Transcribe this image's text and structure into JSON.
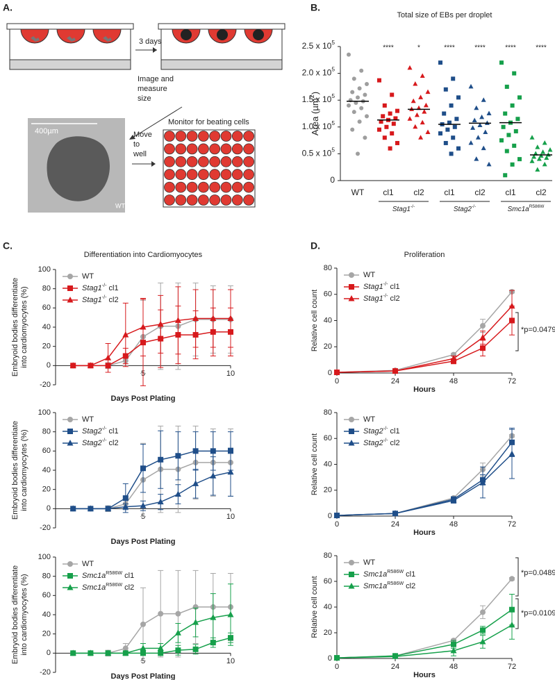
{
  "panel_a": {
    "label": "A.",
    "step1": "3 days",
    "step2": [
      "Image and",
      "measure",
      "size"
    ],
    "scale_bar": "400µm",
    "sample": "WT",
    "step3": [
      "Move",
      "to",
      "well"
    ],
    "plate_title": "Monitor for beating cells"
  },
  "chart_data": [
    {
      "type": "dotplot",
      "panel_label": "B.",
      "title": "Total size of EBs per droplet",
      "ylabel": "Area (µm^2)",
      "categories": [
        "WT",
        "cl1",
        "cl2",
        "cl1",
        "cl2",
        "cl1",
        "cl2"
      ],
      "group_labels": [
        "Stag1-/-",
        "Stag2-/-",
        "Smc1aR586W"
      ],
      "significance": [
        null,
        "****",
        "*",
        "****",
        "****",
        "****",
        "****"
      ],
      "colors": [
        "#9e9e9e",
        "#d7191c",
        "#d7191c",
        "#1f4e89",
        "#1f4e89",
        "#16a04b",
        "#16a04b"
      ],
      "markers": [
        "circle",
        "square",
        "triangle",
        "square",
        "triangle",
        "square",
        "triangle"
      ],
      "values": [
        [
          235000,
          205000,
          190000,
          180000,
          172000,
          165000,
          160000,
          155000,
          150000,
          148000,
          145000,
          140000,
          135000,
          128000,
          120000,
          110000,
          95000,
          80000,
          50000
        ],
        [
          187000,
          160000,
          140000,
          130000,
          125000,
          120000,
          116000,
          113000,
          110000,
          106000,
          100000,
          95000,
          88000,
          80000,
          70000,
          60000
        ],
        [
          210000,
          195000,
          180000,
          165000,
          155000,
          148000,
          140000,
          135000,
          133000,
          128000,
          122000,
          115000,
          108000,
          100000,
          90000,
          80000
        ],
        [
          220000,
          190000,
          170000,
          155000,
          140000,
          125000,
          115000,
          108000,
          105000,
          100000,
          95000,
          88000,
          80000,
          70000,
          60000,
          50000
        ],
        [
          175000,
          150000,
          135000,
          125000,
          118000,
          112000,
          107000,
          103000,
          98000,
          90000,
          80000,
          70000,
          60000,
          40000,
          30000
        ],
        [
          220000,
          200000,
          175000,
          155000,
          140000,
          125000,
          115000,
          108000,
          100000,
          92000,
          85000,
          75000,
          65000,
          55000,
          40000,
          30000,
          10000
        ],
        [
          80000,
          70000,
          62000,
          57000,
          53000,
          50000,
          48000,
          46000,
          44000,
          42000,
          40000,
          36000,
          30000,
          20000
        ]
      ],
      "medians": [
        148000,
        113000,
        133000,
        105000,
        107000,
        108000,
        48000
      ],
      "ylim": [
        0,
        250000
      ],
      "yticks": [
        0,
        {
          "value": 50000,
          "label": "0.5 x 10^5"
        },
        {
          "value": 100000,
          "label": "1.0 x 10^5"
        },
        {
          "value": 150000,
          "label": "1.5 x 10^5"
        },
        {
          "value": 200000,
          "label": "2.0 x 10^5"
        },
        {
          "value": 250000,
          "label": "2.5 x 10^5"
        }
      ]
    },
    {
      "type": "line",
      "panel_label": "C.",
      "title": "Differentiation into Cardiomyocytes",
      "xlabel": "Days Post Plating",
      "ylabel": [
        "Embryoid bodies differentiate",
        "into cardiomyocytes (%)"
      ],
      "x": [
        1,
        2,
        3,
        4,
        5,
        6,
        7,
        8,
        9,
        10
      ],
      "xlim": [
        0,
        10
      ],
      "xticks": [
        5,
        10
      ],
      "ylim": [
        -20,
        100
      ],
      "yticks": [
        -20,
        0,
        20,
        40,
        60,
        80,
        100
      ],
      "series": [
        {
          "name": "WT",
          "color": "#a6a6a6",
          "marker": "circle",
          "values": [
            0,
            0,
            0,
            5,
            30,
            41,
            41,
            48,
            48,
            48
          ],
          "errors": [
            0,
            0,
            3,
            5,
            38,
            45,
            45,
            38,
            35,
            35
          ]
        },
        {
          "name": "Stag1-/- cl1",
          "color": "#d7191c",
          "marker": "square",
          "values": [
            0,
            0,
            0,
            10,
            24,
            28,
            32,
            32,
            35,
            35
          ],
          "errors": [
            0,
            0,
            2,
            8,
            45,
            30,
            30,
            25,
            25,
            25
          ]
        },
        {
          "name": "Stag1-/- cl2",
          "color": "#d7191c",
          "marker": "triangle",
          "values": [
            0,
            0,
            8,
            32,
            40,
            43,
            47,
            49,
            49,
            49
          ],
          "errors": [
            0,
            0,
            15,
            33,
            30,
            30,
            35,
            30,
            30,
            30
          ]
        }
      ]
    },
    {
      "type": "line",
      "xlabel": "Days Post Plating",
      "ylabel": [
        "Embryoid bodies differentiate",
        "into cardiomyocytes (%)"
      ],
      "x": [
        1,
        2,
        3,
        4,
        5,
        6,
        7,
        8,
        9,
        10
      ],
      "xlim": [
        0,
        10
      ],
      "xticks": [
        5,
        10
      ],
      "ylim": [
        -20,
        100
      ],
      "yticks": [
        -20,
        0,
        20,
        40,
        60,
        80,
        100
      ],
      "series": [
        {
          "name": "WT",
          "color": "#a6a6a6",
          "marker": "circle",
          "values": [
            0,
            0,
            0,
            5,
            30,
            41,
            41,
            48,
            48,
            48
          ],
          "errors": [
            0,
            0,
            3,
            5,
            38,
            45,
            45,
            38,
            35,
            35
          ]
        },
        {
          "name": "Stag2-/- cl1",
          "color": "#1f4e89",
          "marker": "square",
          "values": [
            0,
            0,
            0,
            11,
            42,
            51,
            55,
            60,
            60,
            60
          ],
          "errors": [
            0,
            0,
            0,
            15,
            25,
            30,
            25,
            20,
            20,
            20
          ]
        },
        {
          "name": "Stag2-/- cl2",
          "color": "#1f4e89",
          "marker": "triangle",
          "values": [
            0,
            0,
            0,
            2,
            3,
            7,
            15,
            26,
            34,
            38
          ],
          "errors": [
            0,
            0,
            0,
            3,
            5,
            8,
            10,
            15,
            20,
            25
          ]
        }
      ]
    },
    {
      "type": "line",
      "xlabel": "Days Post Plating",
      "ylabel": [
        "Embryoid bodies differentiate",
        "into cardiomyocytes (%)"
      ],
      "x": [
        1,
        2,
        3,
        4,
        5,
        6,
        7,
        8,
        9,
        10
      ],
      "xlim": [
        0,
        10
      ],
      "xticks": [
        5,
        10
      ],
      "ylim": [
        -20,
        100
      ],
      "yticks": [
        -20,
        0,
        20,
        40,
        60,
        80,
        100
      ],
      "series": [
        {
          "name": "WT",
          "color": "#a6a6a6",
          "marker": "circle",
          "values": [
            0,
            0,
            0,
            5,
            30,
            41,
            41,
            48,
            48,
            48
          ],
          "errors": [
            0,
            0,
            3,
            5,
            38,
            45,
            45,
            38,
            35,
            35
          ]
        },
        {
          "name": "Smc1aR586W cl1",
          "color": "#16a04b",
          "marker": "square",
          "values": [
            0,
            0,
            0,
            0,
            0,
            0,
            3,
            4,
            11,
            16
          ],
          "errors": [
            0,
            0,
            0,
            0,
            0,
            0,
            5,
            5,
            5,
            5
          ]
        },
        {
          "name": "Smc1aR586W cl2",
          "color": "#16a04b",
          "marker": "triangle",
          "values": [
            0,
            0,
            0,
            0,
            5,
            5,
            21,
            32,
            37,
            40
          ],
          "errors": [
            0,
            0,
            0,
            0,
            5,
            5,
            10,
            15,
            25,
            32
          ]
        }
      ]
    },
    {
      "type": "line",
      "panel_label": "D.",
      "title": "Proliferation",
      "xlabel": "Hours",
      "ylabel": "Relative cell count",
      "x": [
        0,
        24,
        48,
        60,
        72
      ],
      "xlim": [
        0,
        72
      ],
      "xticks": [
        0,
        24,
        48,
        72
      ],
      "ylim": [
        0,
        80
      ],
      "yticks": [
        0,
        20,
        40,
        60,
        80
      ],
      "annotations": [
        "*p=0.0479"
      ],
      "series": [
        {
          "name": "WT",
          "color": "#a6a6a6",
          "marker": "circle",
          "values": [
            0.5,
            2,
            14,
            36,
            62
          ],
          "errors": [
            0,
            0.5,
            1,
            5,
            1
          ]
        },
        {
          "name": "Stag1-/- cl1",
          "color": "#d7191c",
          "marker": "square",
          "values": [
            0.5,
            1.5,
            9,
            19,
            40
          ],
          "errors": [
            0,
            0.5,
            2,
            6,
            11
          ]
        },
        {
          "name": "Stag1-/- cl2",
          "color": "#d7191c",
          "marker": "triangle",
          "values": [
            0.5,
            1.5,
            11,
            27,
            51
          ],
          "errors": [
            0,
            0.5,
            2,
            5,
            12
          ]
        }
      ]
    },
    {
      "type": "line",
      "xlabel": "Hours",
      "ylabel": "Relative cell count",
      "x": [
        0,
        24,
        48,
        60,
        72
      ],
      "xlim": [
        0,
        72
      ],
      "xticks": [
        0,
        24,
        48,
        72
      ],
      "ylim": [
        0,
        80
      ],
      "yticks": [
        0,
        20,
        40,
        60,
        80
      ],
      "series": [
        {
          "name": "WT",
          "color": "#a6a6a6",
          "marker": "circle",
          "values": [
            0.5,
            2,
            14,
            36,
            62
          ],
          "errors": [
            0,
            0.5,
            1,
            5,
            1
          ]
        },
        {
          "name": "Stag2-/- cl1",
          "color": "#1f4e89",
          "marker": "square",
          "values": [
            0.5,
            2,
            13,
            28,
            57
          ],
          "errors": [
            0,
            0.5,
            2,
            4,
            11
          ]
        },
        {
          "name": "Stag2-/- cl2",
          "color": "#1f4e89",
          "marker": "triangle",
          "values": [
            0.5,
            2,
            12,
            26,
            48
          ],
          "errors": [
            0,
            0.5,
            2,
            12,
            19
          ]
        }
      ]
    },
    {
      "type": "line",
      "xlabel": "Hours",
      "ylabel": "Relative cell count",
      "x": [
        0,
        24,
        48,
        60,
        72
      ],
      "xlim": [
        0,
        72
      ],
      "xticks": [
        0,
        24,
        48,
        72
      ],
      "ylim": [
        0,
        80
      ],
      "yticks": [
        0,
        20,
        40,
        60,
        80
      ],
      "annotations": [
        "*p=0.0489",
        "*p=0.0109"
      ],
      "series": [
        {
          "name": "WT",
          "color": "#a6a6a6",
          "marker": "circle",
          "values": [
            0.5,
            2,
            14,
            36,
            62
          ],
          "errors": [
            0,
            0.5,
            1,
            5,
            1
          ]
        },
        {
          "name": "Smc1aR586W cl1",
          "color": "#16a04b",
          "marker": "square",
          "values": [
            0.5,
            2,
            11,
            22,
            38
          ],
          "errors": [
            0,
            0.5,
            3,
            3,
            12
          ]
        },
        {
          "name": "Smc1aR586W cl2",
          "color": "#16a04b",
          "marker": "triangle",
          "values": [
            0.5,
            1.5,
            6,
            13,
            26
          ],
          "errors": [
            0,
            0.5,
            4,
            5,
            11
          ]
        }
      ]
    }
  ]
}
